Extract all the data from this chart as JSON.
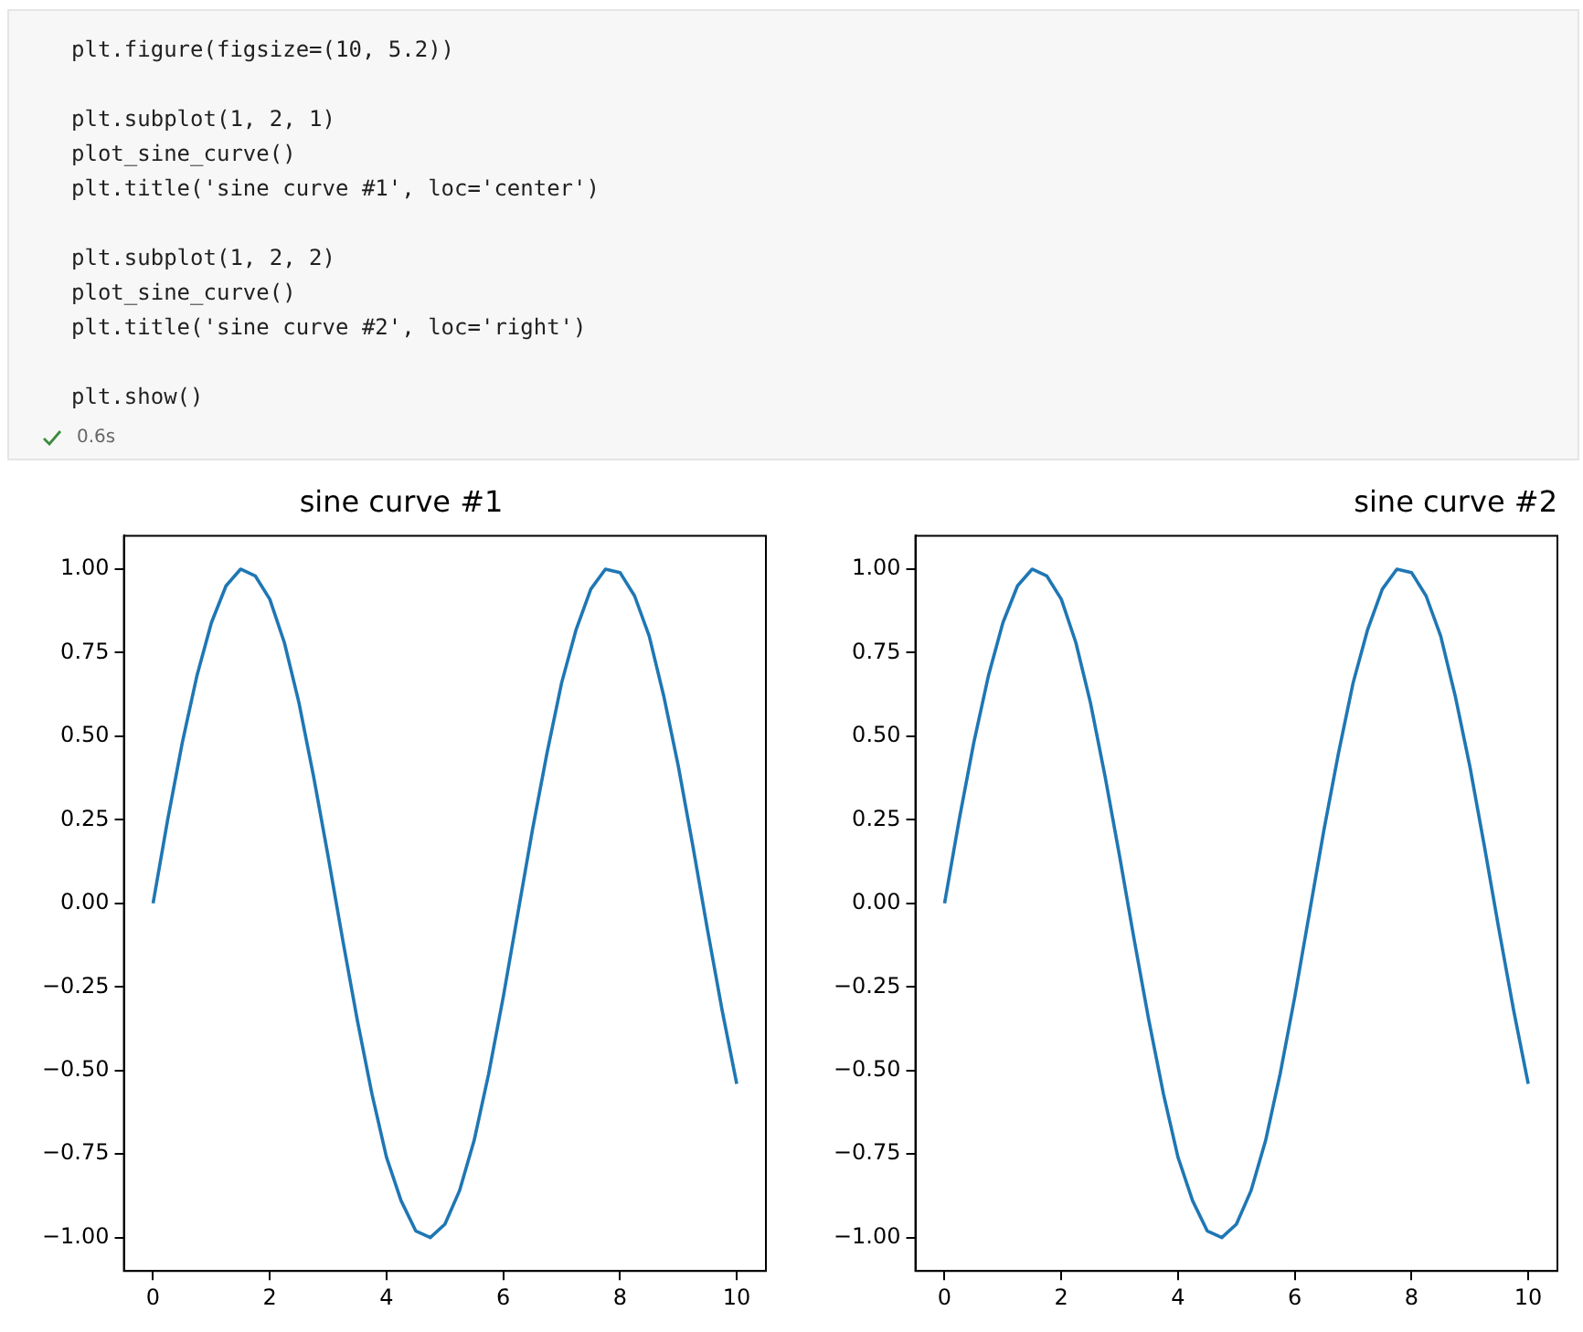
{
  "chart_data": [
    {
      "type": "other",
      "annotations": [
        "plt.figure(figsize=(10, 5.2))\n\nplt.subplot(1, 2, 1)\nplot_sine_curve()\nplt.title('sine curve #1', loc='center')\n\nplt.subplot(1, 2, 2)\nplot_sine_curve()\nplt.title('sine curve #2', loc='right')\n\nplt.show()",
        "0.6s"
      ]
    },
    {
      "type": "line",
      "title": "sine curve #1",
      "x": [
        0,
        0.25,
        0.5,
        0.75,
        1,
        1.25,
        1.5,
        1.75,
        2,
        2.25,
        2.5,
        2.75,
        3,
        3.25,
        3.5,
        3.75,
        4,
        4.25,
        4.5,
        4.75,
        5,
        5.25,
        5.5,
        5.75,
        6,
        6.25,
        6.5,
        6.75,
        7,
        7.25,
        7.5,
        7.75,
        8,
        8.25,
        8.5,
        8.75,
        9,
        9.25,
        9.5,
        9.75,
        10
      ],
      "series": [
        {
          "color": "#1f77b4",
          "values": [
            0,
            0.25,
            0.48,
            0.68,
            0.84,
            0.95,
            1.0,
            0.98,
            0.91,
            0.78,
            0.6,
            0.38,
            0.14,
            -0.11,
            -0.35,
            -0.57,
            -0.76,
            -0.89,
            -0.98,
            -1.0,
            -0.96,
            -0.86,
            -0.71,
            -0.51,
            -0.28,
            -0.03,
            0.22,
            0.45,
            0.66,
            0.82,
            0.94,
            1.0,
            0.99,
            0.92,
            0.8,
            0.62,
            0.41,
            0.17,
            -0.08,
            -0.32,
            -0.54
          ]
        }
      ],
      "xlim": [
        -0.5,
        10.5
      ],
      "xticks": [
        0,
        2,
        4,
        6,
        8,
        10
      ],
      "ylim": [
        -1.1,
        1.1
      ],
      "yticks": [
        {
          "value": -1,
          "label": "−1.00"
        },
        {
          "value": -0.75,
          "label": "−0.75"
        },
        {
          "value": -0.5,
          "label": "−0.50"
        },
        {
          "value": -0.25,
          "label": "−0.25"
        },
        {
          "value": 0,
          "label": "0.00"
        },
        {
          "value": 0.25,
          "label": "0.25"
        },
        {
          "value": 0.5,
          "label": "0.50"
        },
        {
          "value": 0.75,
          "label": "0.75"
        },
        {
          "value": 1,
          "label": "1.00"
        }
      ],
      "grid": false,
      "legend": false,
      "marker": "none",
      "line_style": "solid"
    },
    {
      "type": "line",
      "title": "sine curve #2",
      "x": [
        0,
        0.25,
        0.5,
        0.75,
        1,
        1.25,
        1.5,
        1.75,
        2,
        2.25,
        2.5,
        2.75,
        3,
        3.25,
        3.5,
        3.75,
        4,
        4.25,
        4.5,
        4.75,
        5,
        5.25,
        5.5,
        5.75,
        6,
        6.25,
        6.5,
        6.75,
        7,
        7.25,
        7.5,
        7.75,
        8,
        8.25,
        8.5,
        8.75,
        9,
        9.25,
        9.5,
        9.75,
        10
      ],
      "series": [
        {
          "color": "#1f77b4",
          "values": [
            0,
            0.25,
            0.48,
            0.68,
            0.84,
            0.95,
            1.0,
            0.98,
            0.91,
            0.78,
            0.6,
            0.38,
            0.14,
            -0.11,
            -0.35,
            -0.57,
            -0.76,
            -0.89,
            -0.98,
            -1.0,
            -0.96,
            -0.86,
            -0.71,
            -0.51,
            -0.28,
            -0.03,
            0.22,
            0.45,
            0.66,
            0.82,
            0.94,
            1.0,
            0.99,
            0.92,
            0.8,
            0.62,
            0.41,
            0.17,
            -0.08,
            -0.32,
            -0.54
          ]
        }
      ],
      "xlim": [
        -0.5,
        10.5
      ],
      "xticks": [
        0,
        2,
        4,
        6,
        8,
        10
      ],
      "ylim": [
        -1.1,
        1.1
      ],
      "yticks": [
        {
          "value": -1,
          "label": "−1.00"
        },
        {
          "value": -0.75,
          "label": "−0.75"
        },
        {
          "value": -0.5,
          "label": "−0.50"
        },
        {
          "value": -0.25,
          "label": "−0.25"
        },
        {
          "value": 0,
          "label": "0.00"
        },
        {
          "value": 0.25,
          "label": "0.25"
        },
        {
          "value": 0.5,
          "label": "0.50"
        },
        {
          "value": 0.75,
          "label": "0.75"
        },
        {
          "value": 1,
          "label": "1.00"
        }
      ],
      "grid": false,
      "legend": false,
      "marker": "none",
      "line_style": "solid"
    }
  ]
}
